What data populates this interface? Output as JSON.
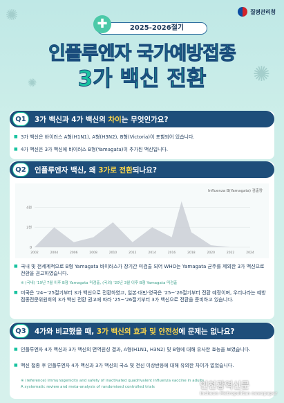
{
  "header": {
    "agency": "질병관리청",
    "year_label": "2025-2026절기",
    "title_line1": "인플루엔자 국가예방접종",
    "title_line2": "3가 백신 전환"
  },
  "q1": {
    "badge": "Q1",
    "question_pre": "3가 백신과 4가 백신의 ",
    "question_hl": "차이",
    "question_post": "는 무엇인가요?",
    "bullets": [
      "3가 백신은 바이러스 A형(H1N1), A형(H3N2), B형(Victoria)이 포함되어 있습니다.",
      "4가 백신은 3가 백신에 바이러스 B형(Yamagata)이 추가된 백신입니다."
    ]
  },
  "q2": {
    "badge": "Q2",
    "question_pre": "인플루엔자 백신, 왜 ",
    "question_hl": "3가로 전환",
    "question_post": "되나요?",
    "bullets": [
      "국내 및 전세계적으로 B형 Yamagata 바이러스가 장기간 미검출 되어 WHO는 Yamagata 균주를 제외한 3가 백신으로 전환을 권고하였습니다.",
      "미국은 '24~'25절기부터 3가 백신으로 전환하였고, 일본·대만·영국은 '25~'26절기부터 전환 예정이며, 우리나라는 예방접종전문위원회의 3가 백신 전환 권고에 따라 '25~'26절기부터 3가 백신으로 전환을 준비하고 있습니다."
    ],
    "note": "※ (국내) '19년 7월 이후 B형 Yamagata 미검출, (국외) '20년 3월 이후 B형 Yamagata 미검출"
  },
  "q3": {
    "badge": "Q3",
    "question_pre": "4가와 비교했을 때, ",
    "question_hl": "3가 백신의 효과 및 안전성",
    "question_post": "에 문제는 없나요?",
    "bullets": [
      "인플루엔자 4가 백신과 3가 백신의 면역원성 결과, A형(H1N1, H3N2) 및 B형에 대해 유사한 효능을 보였습니다.",
      "백신 접종 후 인플루엔자 4가 백신과 3가 백신의 국소 및 전신 이상반응에 대해 유의한 차이가 없었습니다."
    ],
    "note1": "※ (reference) Immunogenicity and safety of inactivated quadrivalent influenza vaccine in adults",
    "note2": "A systematic review and meta-analysis of randomised controlled trials"
  },
  "chart_data": {
    "type": "line",
    "title": "Influenza B(Yamagata) 검출량",
    "x": [
      2002,
      2004,
      2006,
      2008,
      2010,
      2012,
      2014,
      2016,
      2017,
      2018,
      2020,
      2022,
      2024
    ],
    "values": [
      0,
      2000,
      500,
      1000,
      2500,
      500,
      2000,
      1000,
      4600,
      1500,
      200,
      0,
      0
    ],
    "xticks": [
      "2002",
      "2004",
      "2006",
      "2008",
      "2010",
      "2012",
      "2014",
      "2016",
      "2018",
      "2020",
      "2022",
      "2024"
    ],
    "yticks": [
      "0",
      "2천",
      "4천"
    ],
    "ylim": [
      0,
      5000
    ],
    "color": "#c9cdd4"
  },
  "watermark": {
    "main": "인천광역신문",
    "sub": "Incheon Metropolitan newspaper"
  }
}
